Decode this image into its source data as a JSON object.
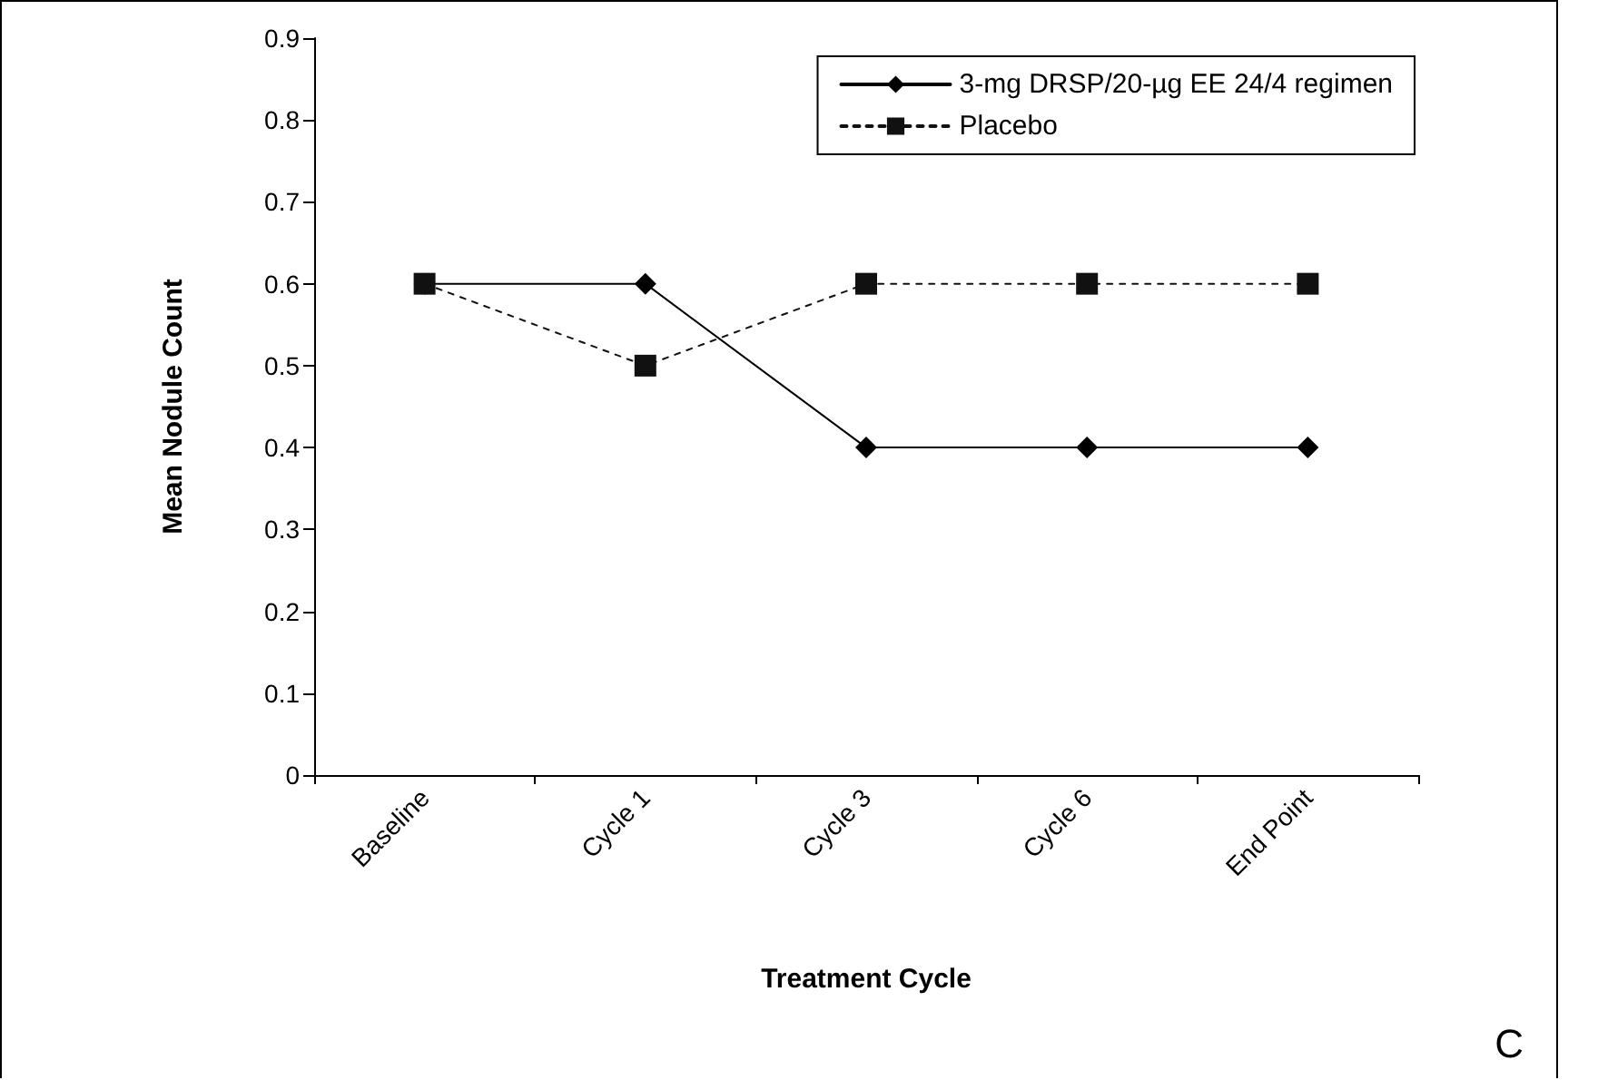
{
  "chart_data": {
    "type": "line",
    "xlabel": "Treatment Cycle",
    "ylabel": "Mean Nodule Count",
    "categories": [
      "Baseline",
      "Cycle 1",
      "Cycle 3",
      "Cycle 6",
      "End Point"
    ],
    "series": [
      {
        "name": "3-mg DRSP/20-µg EE 24/4 regimen",
        "color": "#000000",
        "marker": "diamond",
        "line_style": "solid",
        "values": [
          0.6,
          0.6,
          0.4,
          0.4,
          0.4
        ]
      },
      {
        "name": "Placebo",
        "color": "#111111",
        "marker": "square",
        "line_style": "dotted",
        "values": [
          0.6,
          0.5,
          0.6,
          0.6,
          0.6
        ]
      }
    ],
    "ylim": [
      0,
      0.9
    ],
    "yticks": [
      0,
      0.1,
      0.2,
      0.3,
      0.4,
      0.5,
      0.6,
      0.7,
      0.8,
      0.9
    ],
    "grid": false,
    "legend": "top right",
    "annotations": [
      "C"
    ]
  }
}
